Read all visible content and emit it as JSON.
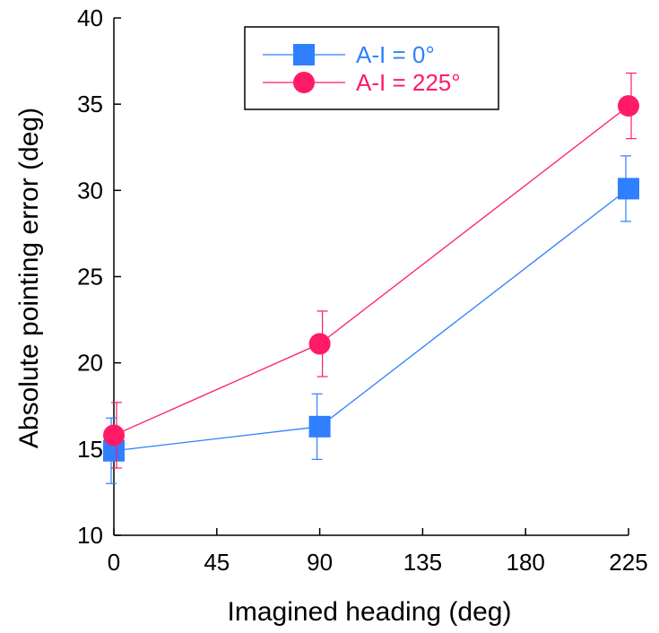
{
  "chart_data": {
    "type": "line",
    "title": "",
    "xlabel": "Imagined heading (deg)",
    "ylabel": "Absolute pointing error (deg)",
    "xlim": [
      0,
      225
    ],
    "ylim": [
      10,
      40
    ],
    "xticks": [
      0,
      45,
      90,
      135,
      180,
      225
    ],
    "yticks": [
      10,
      15,
      20,
      25,
      30,
      35,
      40
    ],
    "grid": false,
    "legend_position": "top-center",
    "x": [
      0,
      90,
      225
    ],
    "series": [
      {
        "name": "A-I = 0°",
        "marker": "square",
        "color": "#2f7fff",
        "values": [
          14.9,
          16.3,
          30.1
        ],
        "error": [
          1.9,
          1.9,
          1.9
        ]
      },
      {
        "name": "A-I = 225°",
        "marker": "circle",
        "color": "#ff1a66",
        "values": [
          15.8,
          21.1,
          34.9
        ],
        "error": [
          1.9,
          1.9,
          1.9
        ]
      }
    ]
  }
}
